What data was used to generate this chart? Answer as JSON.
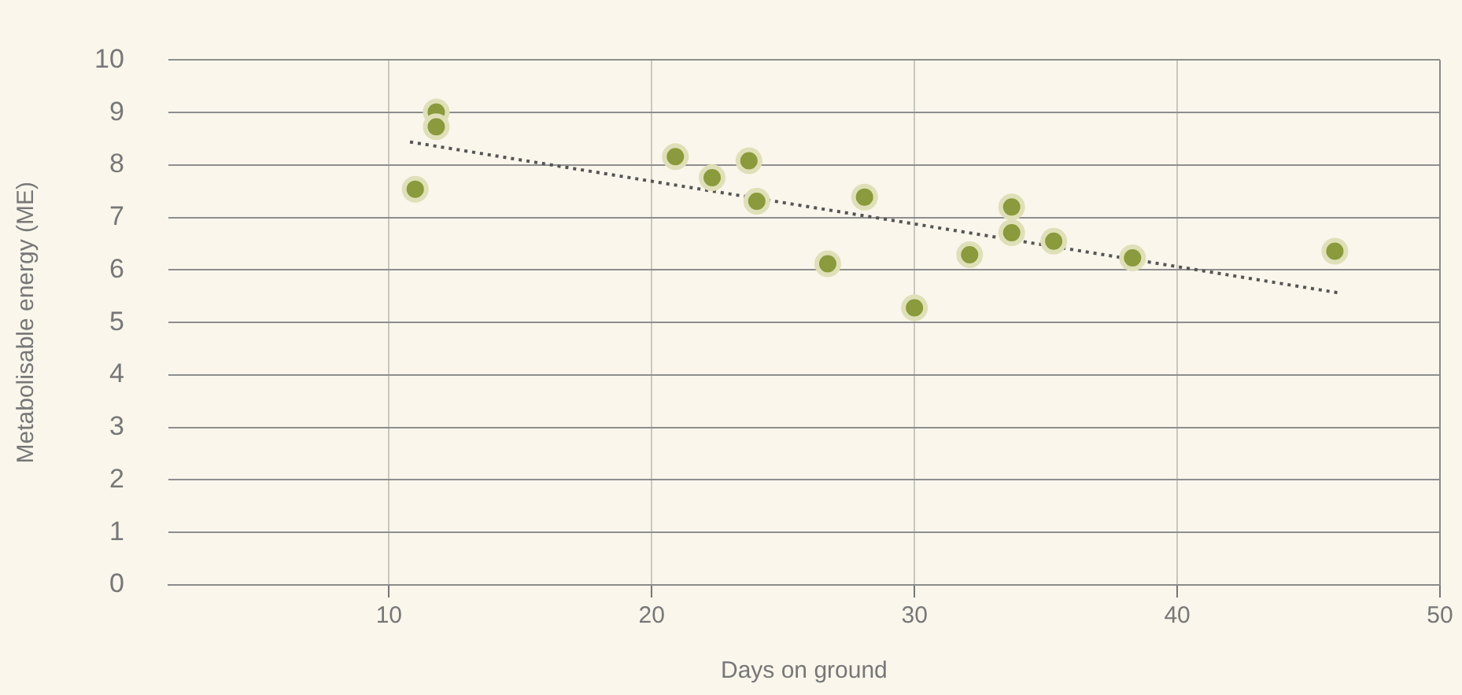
{
  "chart_data": {
    "type": "scatter",
    "xlabel": "Days on ground",
    "ylabel": "Metabolisable energy (ME)",
    "xlim": [
      1.6,
      50
    ],
    "xticks": [
      10,
      20,
      30,
      40,
      50
    ],
    "ylim": [
      0,
      10
    ],
    "yticks": [
      0,
      1,
      2,
      3,
      4,
      5,
      6,
      7,
      8,
      9,
      10
    ],
    "grid": true,
    "legend": false,
    "series": [
      {
        "color": "#8a9a3c",
        "marker": "circle",
        "x": [
          11.0,
          11.8,
          11.8,
          20.9,
          22.3,
          23.7,
          24.0,
          26.7,
          28.1,
          30.0,
          32.1,
          33.7,
          33.7,
          35.3,
          38.3,
          46.0
        ],
        "values": [
          7.54,
          9.01,
          8.73,
          8.16,
          7.76,
          8.08,
          7.31,
          6.12,
          7.39,
          5.28,
          6.29,
          7.2,
          6.71,
          6.55,
          6.23,
          6.36
        ]
      },
      {
        "type": "line",
        "color": "#555555",
        "marker": "none",
        "line_style": "dotted",
        "x": [
          10.8,
          46.2
        ],
        "values": [
          8.44,
          5.56
        ]
      }
    ]
  }
}
